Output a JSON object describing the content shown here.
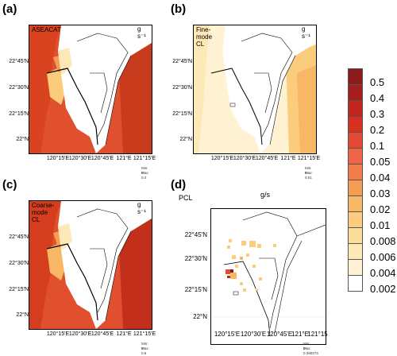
{
  "panels": [
    {
      "letter": "(a)",
      "title": "ASEACAT",
      "unit": "g s⁻¹",
      "min": "Min: 0",
      "max": "Max: 0.4"
    },
    {
      "letter": "(b)",
      "title": "Fine-mode CL",
      "unit": "g s⁻¹",
      "min": "Min: 0",
      "max": "Max: 0.01"
    },
    {
      "letter": "(c)",
      "title": "Coarse-mode CL",
      "unit": "g s⁻¹",
      "min": "Min: 0",
      "max": "Max: 0.6"
    },
    {
      "letter": "(d)",
      "title": "PCL",
      "unit": "g/s",
      "min": "Min: 0",
      "max": "Max: 0.290273"
    }
  ],
  "lat_ticks": [
    "22°45'N",
    "22°30'N",
    "22°15'N",
    "22°N"
  ],
  "lon_ticks": [
    "120°15'E",
    "120°30'E",
    "120°45'E",
    "121°E",
    "121°15'E"
  ],
  "lon_ticks_d": [
    "120°15'E",
    "120°30'E",
    "120°45'E",
    "121°E",
    "121°15"
  ],
  "legend": {
    "labels": [
      "0.5",
      "0.4",
      "0.3",
      "0.2",
      "0.1",
      "0.05",
      "0.04",
      "0.03",
      "0.02",
      "0.01",
      "0.008",
      "0.006",
      "0.004",
      "0.002"
    ],
    "colors": [
      "#8b1a1a",
      "#a51d1d",
      "#c0261e",
      "#d7301f",
      "#e34a33",
      "#ef6548",
      "#f27c4a",
      "#f59c55",
      "#f8b765",
      "#fbcc7c",
      "#fcdc9a",
      "#fde8b7",
      "#fef2d3",
      "#ffffff"
    ]
  }
}
